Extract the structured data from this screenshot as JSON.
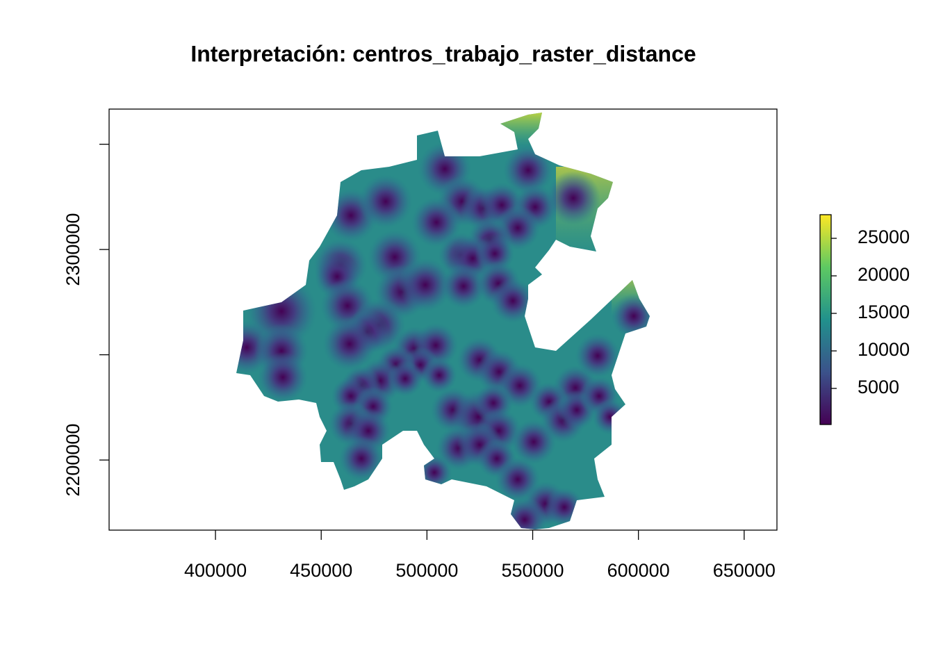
{
  "chart_data": {
    "type": "raster",
    "title": "Interpretación:  centros_trabajo_raster_distance",
    "xlim": [
      349700,
      665500
    ],
    "ylim": [
      2166700,
      2366700
    ],
    "xticks": [
      400000,
      450000,
      500000,
      550000,
      600000,
      650000
    ],
    "yticks": [
      2200000,
      2300000
    ],
    "yticks_unlabeled": [
      2250000,
      2350000
    ],
    "legend": {
      "zlim": [
        190,
        28150
      ],
      "ticks": [
        5000,
        10000,
        15000,
        20000,
        25000
      ],
      "colors": [
        "#440154",
        "#3b528b",
        "#21918c",
        "#5ec962",
        "#fde725"
      ]
    }
  }
}
